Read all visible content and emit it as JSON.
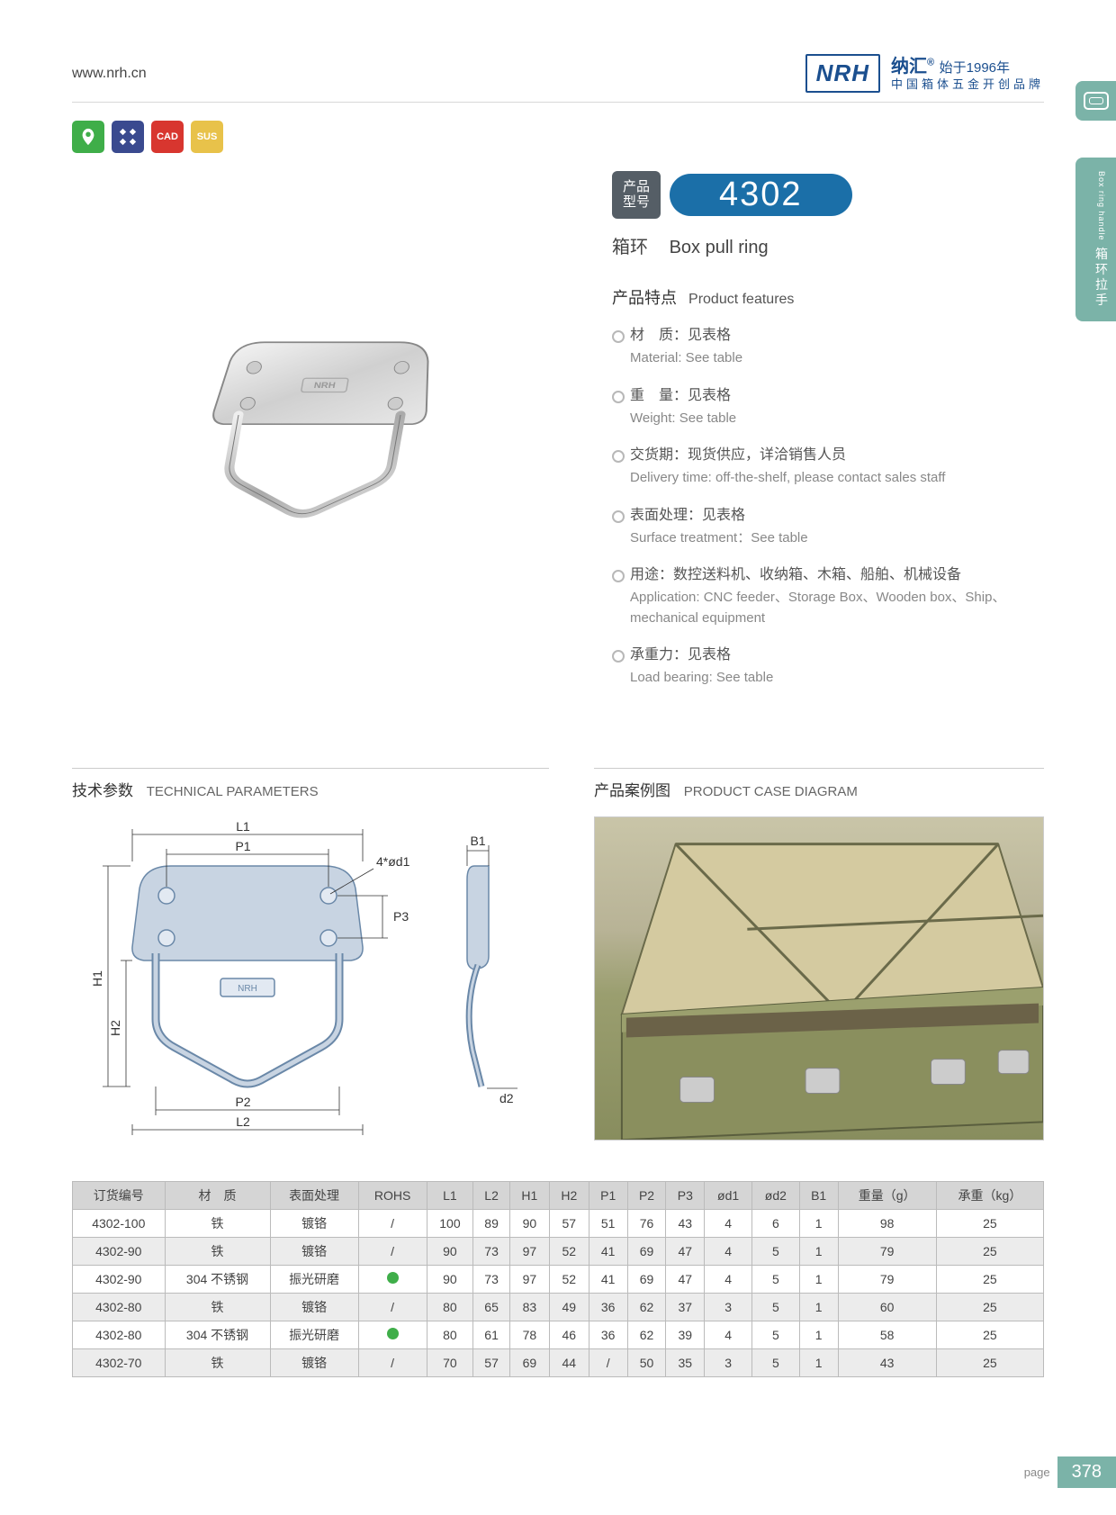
{
  "header": {
    "url": "www.nrh.cn",
    "logo_text": "NRH",
    "brand_line1_cn": "纳汇",
    "brand_line1_reg": "®",
    "brand_line1_small": "始于1996年",
    "brand_line2": "中国箱体五金开创品牌"
  },
  "side_tab": {
    "cn": "箱环拉手",
    "en": "Box ring handle"
  },
  "badges": [
    {
      "color": "#3fae49",
      "label": "eco"
    },
    {
      "color": "#3a4a8f",
      "label": "tool"
    },
    {
      "color": "#d8362f",
      "label": "CAD"
    },
    {
      "color": "#e8c24a",
      "label": "SUS"
    }
  ],
  "model": {
    "label_cn": "产品\n型号",
    "number": "4302",
    "name_cn": "箱环",
    "name_en": "Box pull ring"
  },
  "features": {
    "title_cn": "产品特点",
    "title_en": "Product features",
    "items": [
      {
        "cn": "材　质：见表格",
        "en": "Material: See table"
      },
      {
        "cn": "重　量：见表格",
        "en": "Weight: See table"
      },
      {
        "cn": "交货期：现货供应，详洽销售人员",
        "en": "Delivery time: off-the-shelf, please contact sales staff"
      },
      {
        "cn": "表面处理：见表格",
        "en": "Surface treatment：See table"
      },
      {
        "cn": "用途：数控送料机、收纳箱、木箱、船舶、机械设备",
        "en": "Application: CNC feeder、Storage Box、Wooden box、Ship、mechanical equipment"
      },
      {
        "cn": "承重力：见表格",
        "en": "Load bearing: See table"
      }
    ]
  },
  "tech": {
    "title_cn": "技术参数",
    "title_en": "TECHNICAL PARAMETERS",
    "labels": {
      "L1": "L1",
      "P1": "P1",
      "hole": "4*ød1",
      "H1": "H1",
      "H2": "H2",
      "P2": "P2",
      "L2": "L2",
      "P3": "P3",
      "B1": "B1",
      "d2": "d2"
    }
  },
  "case": {
    "title_cn": "产品案例图",
    "title_en": "PRODUCT CASE DIAGRAM"
  },
  "table": {
    "headers": [
      "订货编号",
      "材　质",
      "表面处理",
      "ROHS",
      "L1",
      "L2",
      "H1",
      "H2",
      "P1",
      "P2",
      "P3",
      "ød1",
      "ød2",
      "B1",
      "重量（g）",
      "承重（kg）"
    ],
    "rows": [
      {
        "alt": false,
        "rohs": "slash",
        "cells": [
          "4302-100",
          "铁",
          "镀铬",
          "/",
          "100",
          "89",
          "90",
          "57",
          "51",
          "76",
          "43",
          "4",
          "6",
          "1",
          "98",
          "25"
        ]
      },
      {
        "alt": true,
        "rohs": "slash",
        "cells": [
          "4302-90",
          "铁",
          "镀铬",
          "/",
          "90",
          "73",
          "97",
          "52",
          "41",
          "69",
          "47",
          "4",
          "5",
          "1",
          "79",
          "25"
        ]
      },
      {
        "alt": false,
        "rohs": "dot",
        "cells": [
          "4302-90",
          "304 不锈钢",
          "振光研磨",
          "",
          "90",
          "73",
          "97",
          "52",
          "41",
          "69",
          "47",
          "4",
          "5",
          "1",
          "79",
          "25"
        ]
      },
      {
        "alt": true,
        "rohs": "slash",
        "cells": [
          "4302-80",
          "铁",
          "镀铬",
          "/",
          "80",
          "65",
          "83",
          "49",
          "36",
          "62",
          "37",
          "3",
          "5",
          "1",
          "60",
          "25"
        ]
      },
      {
        "alt": false,
        "rohs": "dot",
        "cells": [
          "4302-80",
          "304 不锈钢",
          "振光研磨",
          "",
          "80",
          "61",
          "78",
          "46",
          "36",
          "62",
          "39",
          "4",
          "5",
          "1",
          "58",
          "25"
        ]
      },
      {
        "alt": true,
        "rohs": "slash",
        "cells": [
          "4302-70",
          "铁",
          "镀铬",
          "/",
          "70",
          "57",
          "69",
          "44",
          "/",
          "50",
          "35",
          "3",
          "5",
          "1",
          "43",
          "25"
        ]
      }
    ]
  },
  "pagenum": {
    "label": "page",
    "number": "378"
  },
  "colors": {
    "brand_blue": "#1b4f8f",
    "model_blue": "#1b6fa8",
    "tab_teal": "#7bb3a8",
    "table_header": "#d5d5d5",
    "table_alt": "#ececec",
    "green_dot": "#3fae49"
  }
}
